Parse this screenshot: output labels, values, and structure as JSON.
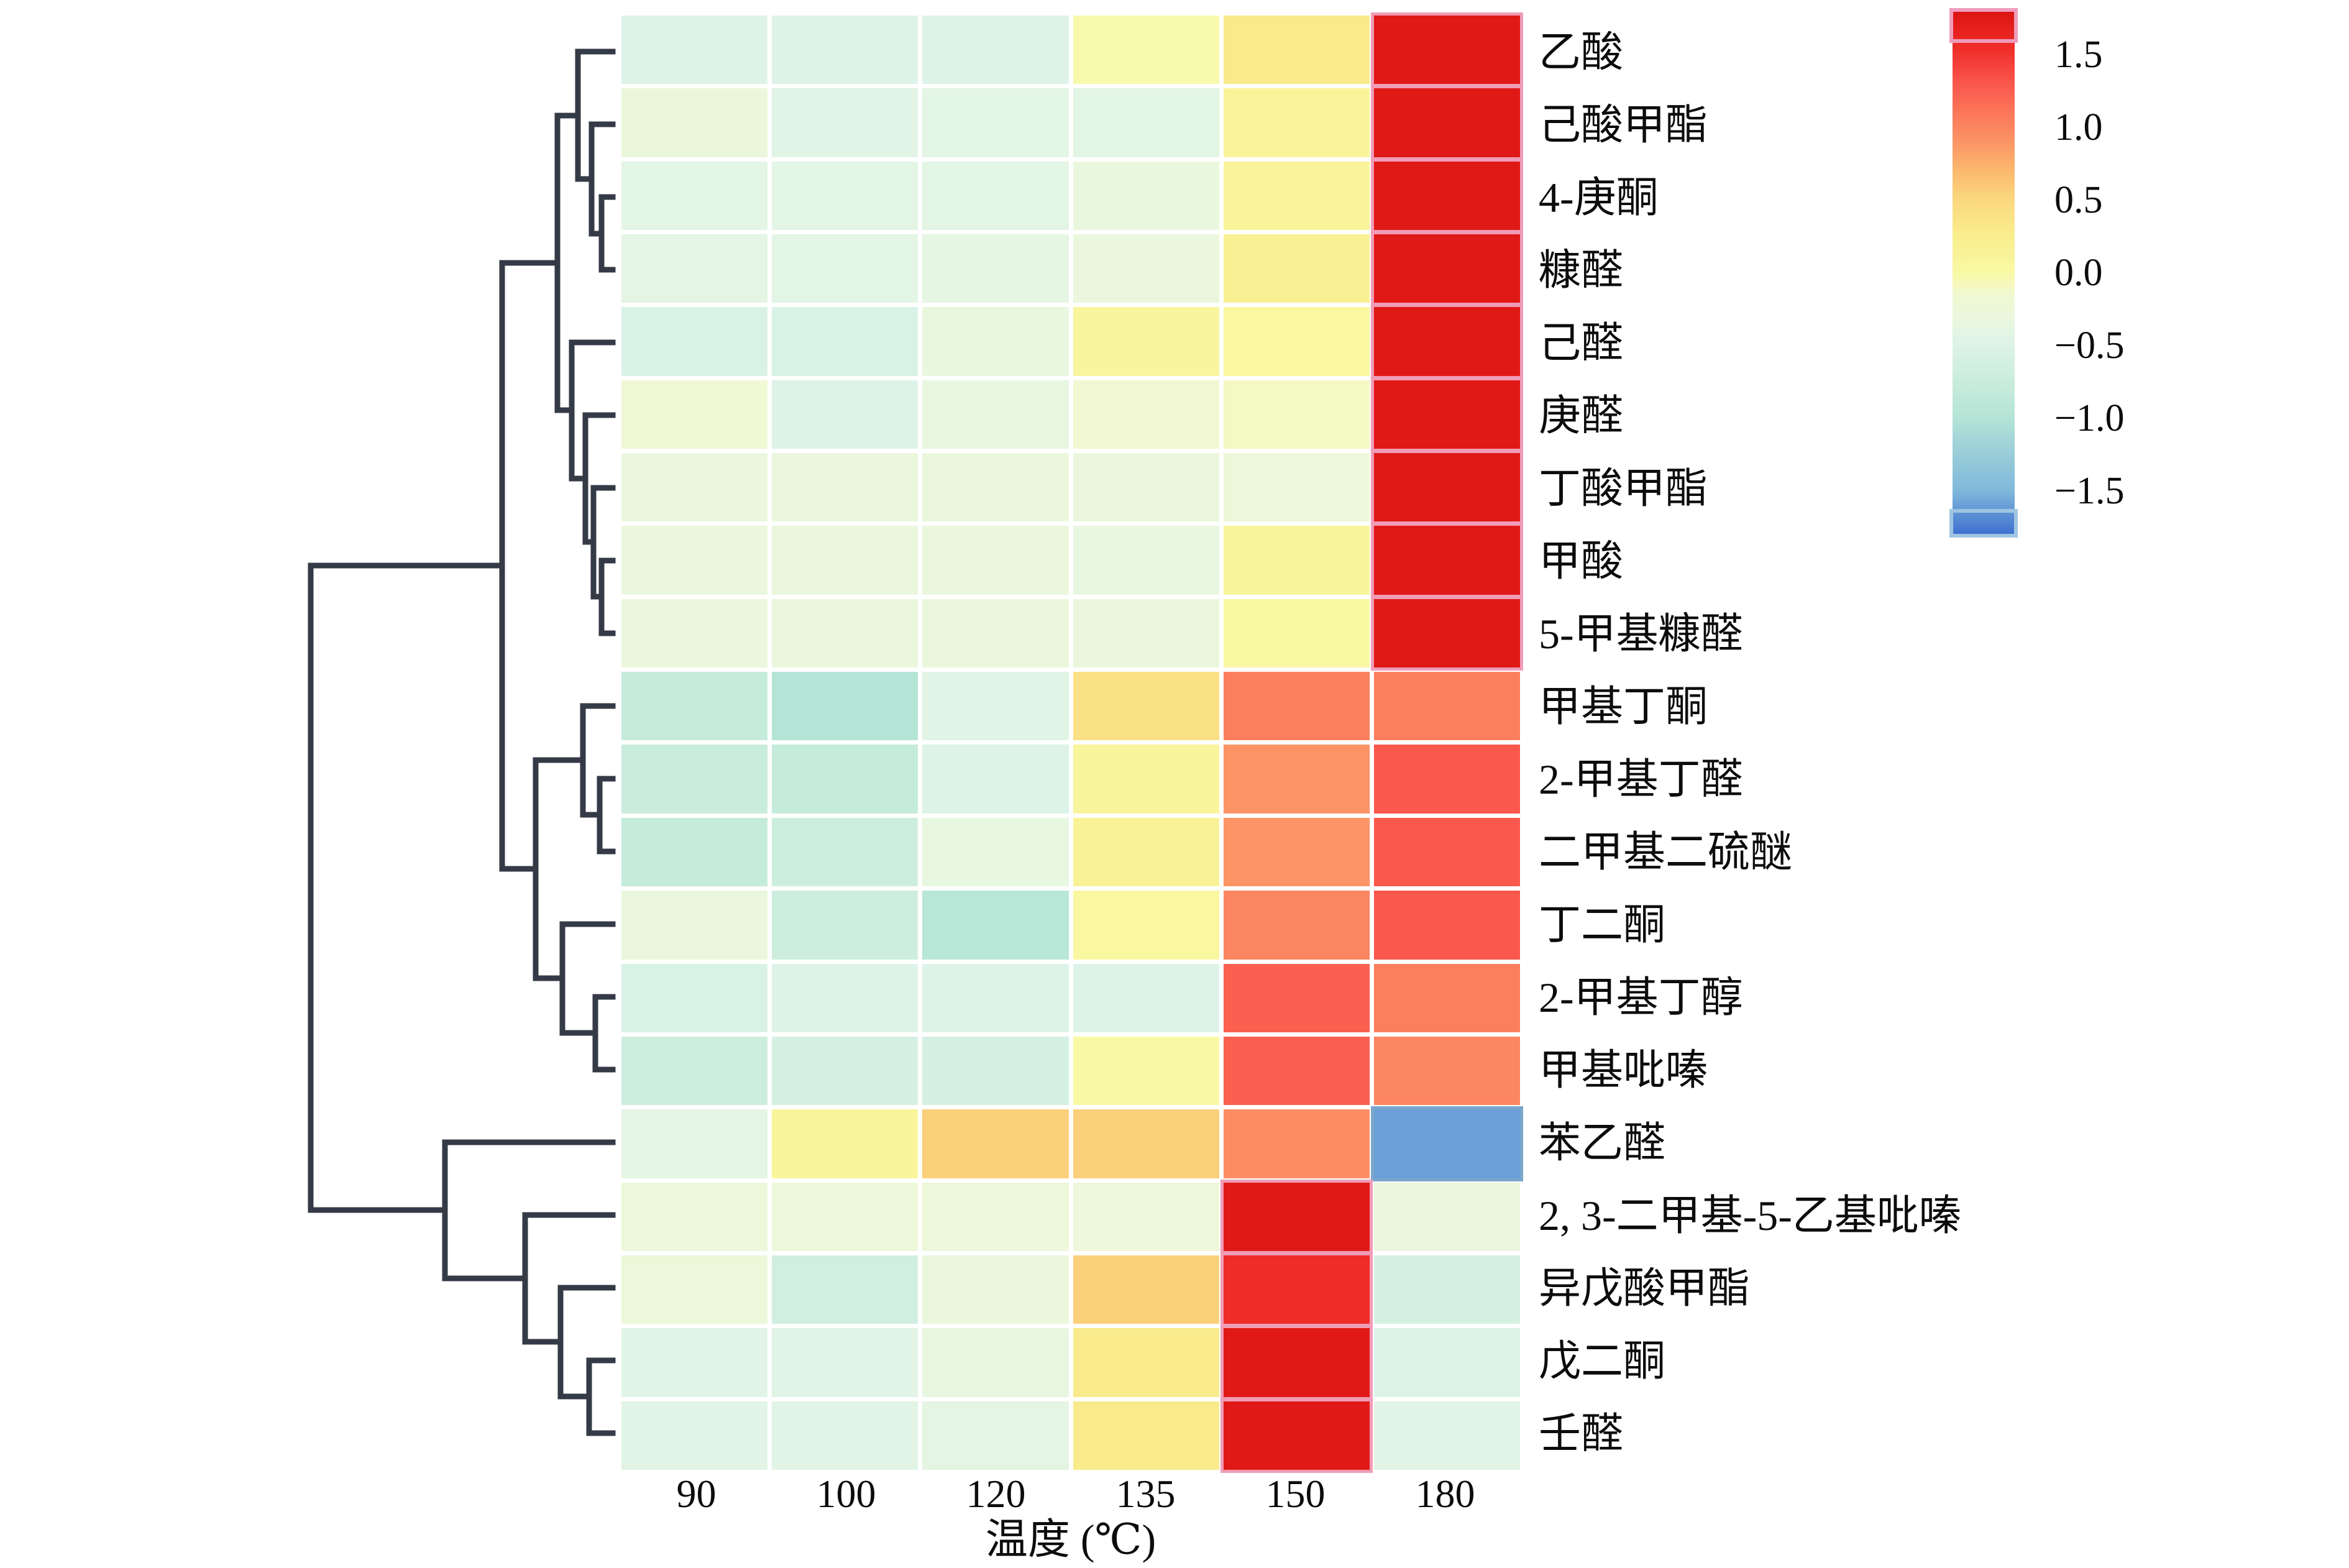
{
  "figure": {
    "kind": "clustered-heatmap",
    "background": "#ffffff"
  },
  "axis": {
    "x_title": "温度 (℃)",
    "x_tick_labels": [
      "90",
      "100",
      "120",
      "135",
      "150",
      "180"
    ]
  },
  "colorbar": {
    "tick_labels": [
      "1.5",
      "1.0",
      "0.5",
      "0.0",
      "−0.5",
      "−1.0",
      "−1.5"
    ],
    "tick_values": [
      1.5,
      1.0,
      0.5,
      0.0,
      -0.5,
      -1.0,
      -1.5
    ],
    "domain": [
      -1.8,
      1.8
    ],
    "hot_ring_color": "#ef9cbc",
    "cold_ring_color": "#9fc6e0"
  },
  "colors": {
    "dendrogram_stroke": "#343a46",
    "hot_cell_outline": "#f19cb7",
    "cold_cell_outline": "#7aa6cc",
    "colormap_stops": [
      [
        -1.8,
        "#3f6fd0"
      ],
      [
        -1.5,
        "#7fb8da"
      ],
      [
        -1.15,
        "#a3d5d8"
      ],
      [
        -1.0,
        "#b4e4d6"
      ],
      [
        -0.7,
        "#cdeede"
      ],
      [
        -0.5,
        "#ddf3e8"
      ],
      [
        -0.33,
        "#e9f7df"
      ],
      [
        -0.15,
        "#f1f8d2"
      ],
      [
        0.0,
        "#f9f9a5"
      ],
      [
        0.25,
        "#f9ee8e"
      ],
      [
        0.5,
        "#fbd87f"
      ],
      [
        0.7,
        "#fcb96e"
      ],
      [
        0.9,
        "#fc9465"
      ],
      [
        1.05,
        "#fc7f5d"
      ],
      [
        1.3,
        "#fa574d"
      ],
      [
        1.55,
        "#ee2c28"
      ],
      [
        1.8,
        "#dc1412"
      ]
    ]
  },
  "chart_data": {
    "type": "heatmap",
    "title": "",
    "xlabel": "温度 (℃)",
    "ylabel": "",
    "x_categories": [
      "90",
      "100",
      "120",
      "135",
      "150",
      "180"
    ],
    "y_categories": [
      "乙酸",
      "己酸甲酯",
      "4-庚酮",
      "糠醛",
      "己醛",
      "庚醛",
      "丁酸甲酯",
      "甲酸",
      "5-甲基糠醛",
      "甲基丁酮",
      "2-甲基丁醛",
      "二甲基二硫醚",
      "丁二酮",
      "2-甲基丁醇",
      "甲基吡嗪",
      "苯乙醛",
      "2, 3-二甲基-5-乙基吡嗪",
      "异戊酸甲酯",
      "戊二酮",
      "壬醛"
    ],
    "values": [
      [
        -0.48,
        -0.48,
        -0.48,
        -0.02,
        0.3,
        1.75
      ],
      [
        -0.28,
        -0.45,
        -0.42,
        -0.42,
        0.12,
        1.75
      ],
      [
        -0.42,
        -0.42,
        -0.42,
        -0.32,
        0.12,
        1.75
      ],
      [
        -0.4,
        -0.42,
        -0.38,
        -0.3,
        0.2,
        1.75
      ],
      [
        -0.55,
        -0.55,
        -0.33,
        0.08,
        0.05,
        1.75
      ],
      [
        -0.18,
        -0.5,
        -0.35,
        -0.15,
        -0.1,
        1.75
      ],
      [
        -0.3,
        -0.3,
        -0.3,
        -0.3,
        -0.25,
        1.75
      ],
      [
        -0.3,
        -0.3,
        -0.3,
        -0.35,
        0.1,
        1.75
      ],
      [
        -0.3,
        -0.3,
        -0.3,
        -0.3,
        0.02,
        1.75
      ],
      [
        -0.8,
        -1.0,
        -0.45,
        0.4,
        1.05,
        1.05
      ],
      [
        -0.75,
        -0.8,
        -0.5,
        0.1,
        0.9,
        1.3
      ],
      [
        -0.8,
        -0.7,
        -0.35,
        0.15,
        0.9,
        1.3
      ],
      [
        -0.3,
        -0.7,
        -0.95,
        0.05,
        1.0,
        1.3
      ],
      [
        -0.55,
        -0.5,
        -0.5,
        -0.5,
        1.25,
        1.05
      ],
      [
        -0.7,
        -0.6,
        -0.6,
        0.0,
        1.25,
        1.0
      ],
      [
        -0.4,
        0.1,
        0.55,
        0.55,
        0.95,
        -1.6
      ],
      [
        -0.25,
        -0.25,
        -0.25,
        -0.25,
        1.75,
        -0.3
      ],
      [
        -0.25,
        -0.65,
        -0.3,
        0.55,
        1.55,
        -0.6
      ],
      [
        -0.45,
        -0.45,
        -0.35,
        0.3,
        1.75,
        -0.5
      ],
      [
        -0.45,
        -0.45,
        -0.4,
        0.3,
        1.75,
        -0.45
      ]
    ],
    "legend_position": "right",
    "grid": false,
    "hot_outline_threshold": 1.5,
    "cold_outline_threshold": -1.5,
    "dendrogram": {
      "orientation": "left-of-rows",
      "segments": [
        [
          930,
          83,
          986,
          83
        ],
        [
          952,
          200,
          986,
          200
        ],
        [
          968,
          317,
          986,
          317
        ],
        [
          968,
          434,
          986,
          434
        ],
        [
          968,
          317,
          968,
          434
        ],
        [
          952,
          376,
          968,
          376
        ],
        [
          952,
          200,
          952,
          376
        ],
        [
          930,
          288,
          952,
          288
        ],
        [
          930,
          83,
          930,
          288
        ],
        [
          920,
          551,
          986,
          551
        ],
        [
          942,
          668,
          986,
          668
        ],
        [
          955,
          785,
          986,
          785
        ],
        [
          968,
          902,
          986,
          902
        ],
        [
          968,
          1019,
          986,
          1019
        ],
        [
          968,
          902,
          968,
          1019
        ],
        [
          955,
          960,
          968,
          960
        ],
        [
          955,
          785,
          955,
          960
        ],
        [
          942,
          872,
          955,
          872
        ],
        [
          942,
          668,
          942,
          872
        ],
        [
          920,
          770,
          942,
          770
        ],
        [
          920,
          551,
          920,
          770
        ],
        [
          897,
          186,
          930,
          186
        ],
        [
          897,
          660,
          920,
          660
        ],
        [
          897,
          186,
          897,
          660
        ],
        [
          938,
          1136,
          986,
          1136
        ],
        [
          965,
          1253,
          986,
          1253
        ],
        [
          965,
          1370,
          986,
          1370
        ],
        [
          965,
          1253,
          965,
          1370
        ],
        [
          938,
          1311,
          965,
          1311
        ],
        [
          938,
          1136,
          938,
          1311
        ],
        [
          905,
          1487,
          986,
          1487
        ],
        [
          958,
          1604,
          986,
          1604
        ],
        [
          958,
          1721,
          986,
          1721
        ],
        [
          958,
          1604,
          958,
          1721
        ],
        [
          905,
          1662,
          958,
          1662
        ],
        [
          905,
          1487,
          905,
          1662
        ],
        [
          862,
          1223,
          938,
          1223
        ],
        [
          862,
          1574,
          905,
          1574
        ],
        [
          862,
          1223,
          862,
          1574
        ],
        [
          808,
          423,
          897,
          423
        ],
        [
          808,
          1398,
          862,
          1398
        ],
        [
          808,
          423,
          808,
          1398
        ],
        [
          716,
          1838,
          986,
          1838
        ],
        [
          845,
          1955,
          986,
          1955
        ],
        [
          902,
          2072,
          986,
          2072
        ],
        [
          948,
          2189,
          986,
          2189
        ],
        [
          948,
          2306,
          986,
          2306
        ],
        [
          948,
          2189,
          948,
          2306
        ],
        [
          902,
          2247,
          948,
          2247
        ],
        [
          902,
          2072,
          902,
          2247
        ],
        [
          845,
          2159,
          902,
          2159
        ],
        [
          845,
          1955,
          845,
          2159
        ],
        [
          716,
          2057,
          845,
          2057
        ],
        [
          716,
          1838,
          716,
          2057
        ],
        [
          500,
          910,
          808,
          910
        ],
        [
          500,
          1947,
          716,
          1947
        ],
        [
          500,
          910,
          500,
          1947
        ]
      ]
    }
  }
}
